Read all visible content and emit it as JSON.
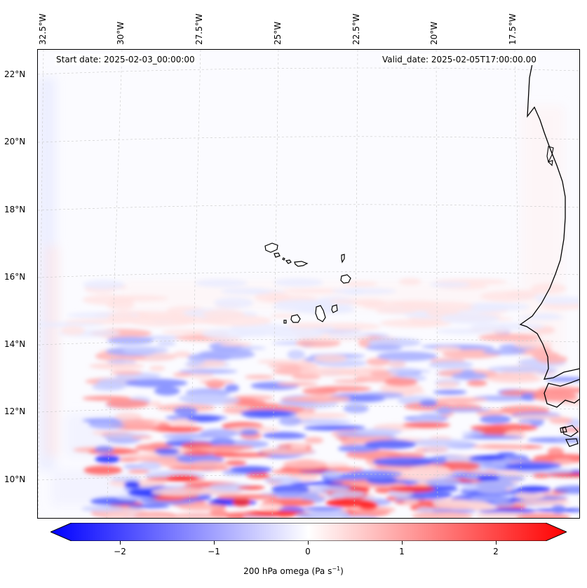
{
  "map": {
    "start_date": "Start date: 2025-02-03_00:00:00",
    "valid_date": "Valid_date: 2025-02-05T17:00:00.00",
    "lon_labels": [
      "32.5°W",
      "30°W",
      "27.5°W",
      "25°W",
      "22.5°W",
      "20°W",
      "17.5°W"
    ],
    "lat_labels": [
      "22°N",
      "20°N",
      "18°N",
      "16°N",
      "14°N",
      "12°N",
      "10°N"
    ],
    "variable": "200 hPa omega",
    "units_html": "(Pa s<sup>−1</sup>)"
  },
  "colorbar": {
    "label": "200 hPa omega (Pa s",
    "label_tail": ")",
    "superscript": "−1",
    "tick_labels": [
      "−2",
      "−1",
      "0",
      "1",
      "2"
    ],
    "tick_values": [
      -2,
      -1,
      0,
      1,
      2
    ],
    "range": [
      -2.75,
      2.75
    ],
    "negative_color": "#0000ff",
    "neutral_color": "#ffffff",
    "positive_color": "#ff0000"
  },
  "colors": {
    "coastline": "#000000",
    "gridline": "#c8c8c8"
  }
}
